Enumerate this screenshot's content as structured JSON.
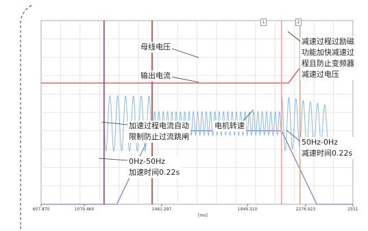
{
  "chart_data": {
    "type": "line",
    "title": "",
    "xlabel": "[ms]",
    "ylabel": "",
    "x_ticks": [
      "607.870",
      "1079.460",
      "1461.297",
      "1949.310",
      "2276.923",
      "2551"
    ],
    "x_range": [
      607.87,
      2551
    ],
    "grid": true,
    "legend": "none",
    "series": [
      {
        "name": "母线电压",
        "color": "#e04040",
        "points": [
          [
            607.87,
            0.66
          ],
          [
            1600,
            0.66
          ],
          [
            2150,
            0.66
          ],
          [
            2200,
            0.72
          ],
          [
            2280,
            0.8
          ],
          [
            2380,
            0.8
          ],
          [
            2551,
            0.79
          ]
        ]
      },
      {
        "name": "电机转速",
        "color": "#8080c0",
        "points": [
          [
            607.87,
            0.0
          ],
          [
            1079.46,
            0.0
          ],
          [
            1299.46,
            0.4
          ],
          [
            2106,
            0.4
          ],
          [
            2326,
            0.0
          ],
          [
            2551,
            0.0
          ]
        ]
      },
      {
        "name": "输出电流",
        "color": "#8ab8e0",
        "points": [
          [
            607.87,
            0.0
          ],
          [
            1000,
            0.0
          ],
          [
            1000,
            0.3
          ],
          [
            1299,
            0.3
          ],
          [
            1299,
            0.13
          ],
          [
            2106,
            0.13
          ],
          [
            2106,
            0.3
          ],
          [
            2400,
            0.3
          ],
          [
            2400,
            0.0
          ],
          [
            2551,
            0.0
          ]
        ]
      }
    ],
    "cursors": [
      {
        "x": 1000,
        "color": "#b03080"
      },
      {
        "x": 1299.46,
        "color": "#c03030"
      },
      {
        "x": 2106,
        "color": "#f0a0a0",
        "tag": "1"
      },
      {
        "x": 2221,
        "color": "#f0a070",
        "tag": "2"
      }
    ]
  },
  "annotations": {
    "bus_voltage": "母线电压",
    "output_current": "输出电流",
    "accel_current_limit": "加速过程电流自动\n限制防止过流跳闸",
    "motor_speed": "电机转速",
    "accel_freq": "0Hz-50Hz\n加速时间0.22s",
    "decel_freq": "50Hz-0Hz\n减速时间0.22s",
    "decel_overexcitation": "减速过程过励磁\n功能加快减速过\n程且防止变频器\n减速过电压"
  }
}
